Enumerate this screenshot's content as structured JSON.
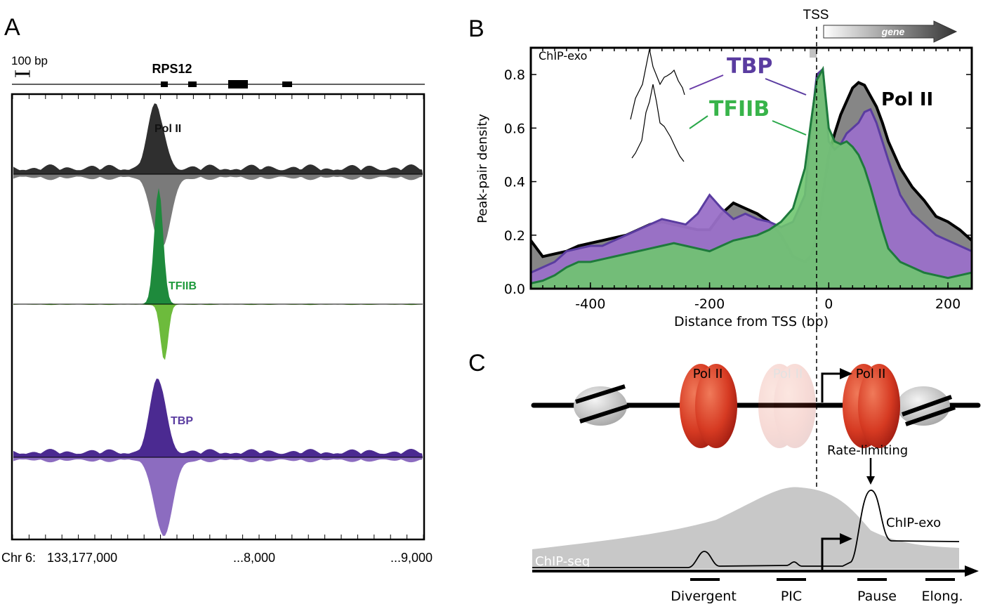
{
  "panelA": {
    "letter": "A",
    "scale_label": "100 bp",
    "gene_name": "RPS12",
    "tracks": [
      {
        "name": "Pol II",
        "color_top": "#2f2f2f",
        "color_bottom": "#7a7a7a",
        "label_color": "#111111"
      },
      {
        "name": "TFIIB",
        "color_top": "#1e8a3c",
        "color_bottom": "#6dbb3c",
        "label_color": "#1e9a3c"
      },
      {
        "name": "TBP",
        "color_top": "#4b2a91",
        "color_bottom": "#8c6cc0",
        "label_color": "#5a3ca0"
      }
    ],
    "axis": {
      "chrom_label": "Chr 6:",
      "start": "133,177,000",
      "mid": "...8,000",
      "end": "...9,000"
    }
  },
  "chart_data": {
    "type": "area",
    "title": "",
    "xlabel": "Distance from TSS (bp)",
    "ylabel": "Peak-pair density",
    "xlim": [
      -500,
      240
    ],
    "ylim": [
      0,
      0.9
    ],
    "x_ticks": [
      -400,
      -200,
      0,
      200
    ],
    "y_ticks": [
      "0.0",
      "0.2",
      "0.4",
      "0.6",
      "0.8"
    ],
    "annotation_method": "ChIP-exo",
    "tss_label": "TSS",
    "gene_label": "gene",
    "x": [
      -500,
      -480,
      -460,
      -440,
      -420,
      -400,
      -380,
      -360,
      -340,
      -320,
      -300,
      -280,
      -260,
      -240,
      -220,
      -200,
      -180,
      -160,
      -140,
      -120,
      -100,
      -80,
      -60,
      -40,
      -30,
      -20,
      -10,
      0,
      10,
      20,
      30,
      40,
      50,
      60,
      70,
      80,
      90,
      100,
      120,
      140,
      160,
      180,
      200,
      220,
      240
    ],
    "series": [
      {
        "name": "Pol II",
        "color": "#808080",
        "line": "#000000",
        "values": [
          0.18,
          0.12,
          0.13,
          0.14,
          0.16,
          0.17,
          0.18,
          0.19,
          0.2,
          0.22,
          0.24,
          0.25,
          0.24,
          0.23,
          0.22,
          0.22,
          0.28,
          0.32,
          0.3,
          0.28,
          0.25,
          0.2,
          0.12,
          0.1,
          0.12,
          0.2,
          0.35,
          0.5,
          0.58,
          0.65,
          0.7,
          0.75,
          0.77,
          0.76,
          0.72,
          0.68,
          0.62,
          0.55,
          0.45,
          0.38,
          0.33,
          0.27,
          0.25,
          0.22,
          0.18
        ]
      },
      {
        "name": "TBP",
        "color": "#9a70c8",
        "line": "#5a3ca0",
        "values": [
          0.06,
          0.08,
          0.1,
          0.14,
          0.15,
          0.16,
          0.16,
          0.18,
          0.2,
          0.22,
          0.24,
          0.26,
          0.25,
          0.24,
          0.28,
          0.35,
          0.3,
          0.26,
          0.28,
          0.26,
          0.25,
          0.23,
          0.25,
          0.35,
          0.6,
          0.8,
          0.82,
          0.55,
          0.52,
          0.54,
          0.58,
          0.6,
          0.62,
          0.66,
          0.67,
          0.62,
          0.55,
          0.48,
          0.35,
          0.28,
          0.24,
          0.2,
          0.18,
          0.16,
          0.14
        ]
      },
      {
        "name": "TFIIB",
        "color": "#6fc56f",
        "line": "#1e7a3c",
        "values": [
          0.02,
          0.03,
          0.05,
          0.08,
          0.1,
          0.1,
          0.11,
          0.12,
          0.13,
          0.14,
          0.15,
          0.16,
          0.17,
          0.16,
          0.15,
          0.14,
          0.16,
          0.18,
          0.19,
          0.2,
          0.22,
          0.25,
          0.3,
          0.45,
          0.62,
          0.78,
          0.82,
          0.6,
          0.55,
          0.54,
          0.55,
          0.53,
          0.5,
          0.45,
          0.38,
          0.3,
          0.22,
          0.15,
          0.1,
          0.08,
          0.06,
          0.05,
          0.04,
          0.05,
          0.06
        ]
      }
    ],
    "labels": {
      "tbp": "TBP",
      "tfiib": "TFIIB",
      "pol2": "Pol II"
    }
  },
  "panelB": {
    "letter": "B"
  },
  "panelC": {
    "letter": "C",
    "pol_label": "Pol II",
    "rate_limiting": "Rate-limiting",
    "chipexo_label": "ChIP-exo",
    "chipseq_label": "ChIP-seq",
    "stages": [
      "Divergent",
      "PIC",
      "Pause",
      "Elong."
    ]
  }
}
